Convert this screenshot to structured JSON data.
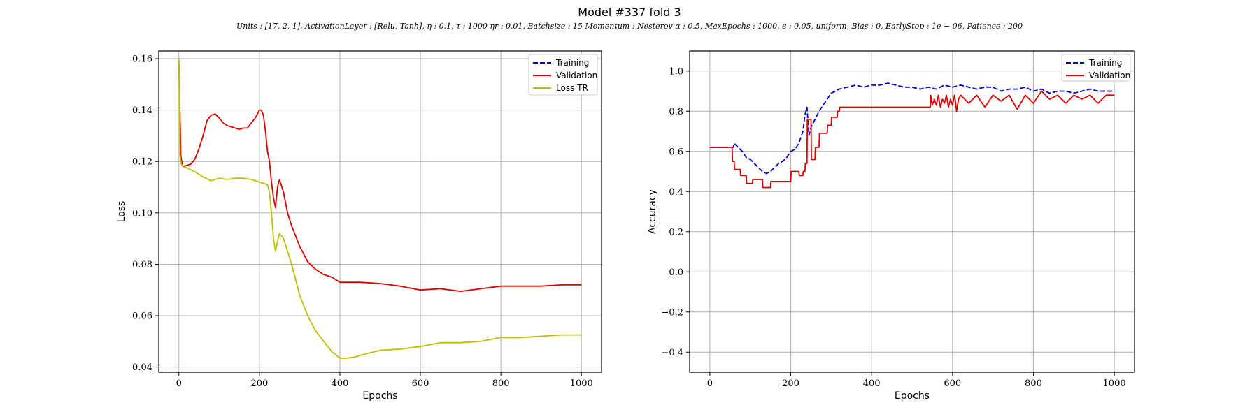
{
  "figure": {
    "title": "Model #337 fold 3",
    "subtitle": "Units : [17, 2, 1], ActivationLayer : [Relu, Tanh], η : 0.1, τ : 1000 ηr : 0.01, Batchsize : 15 Momentum : Nesterov α : 0.5, MaxEpochs : 1000, ϵ : 0.05, uniform, Bias : 0, EarlyStop : 1e − 06, Patience : 200"
  },
  "colors": {
    "training": "#0000cc",
    "validation": "#dd0000",
    "loss_tr": "#bfbf00",
    "grid": "#b0b0b0"
  },
  "chart_data": [
    {
      "type": "line",
      "xlabel": "Epochs",
      "ylabel": "Loss",
      "xlim": [
        -50,
        1050
      ],
      "ylim": [
        0.038,
        0.163
      ],
      "xticks": [
        0,
        200,
        400,
        600,
        800,
        1000
      ],
      "yticks": [
        0.04,
        0.06,
        0.08,
        0.1,
        0.12,
        0.14,
        0.16
      ],
      "yticklabels": [
        "0.04",
        "0.06",
        "0.08",
        "0.10",
        "0.12",
        "0.14",
        "0.16"
      ],
      "grid": true,
      "legend_position": "top-right",
      "legend": [
        "Training",
        "Validation",
        "Loss TR"
      ],
      "series": [
        {
          "name": "Validation",
          "style": "solid",
          "x": [
            0,
            5,
            10,
            20,
            30,
            40,
            50,
            60,
            70,
            80,
            90,
            100,
            110,
            120,
            130,
            140,
            150,
            160,
            170,
            180,
            190,
            200,
            205,
            210,
            215,
            220,
            225,
            230,
            235,
            240,
            245,
            250,
            260,
            270,
            280,
            300,
            320,
            340,
            360,
            380,
            400,
            450,
            500,
            550,
            600,
            650,
            700,
            750,
            800,
            850,
            900,
            950,
            1000
          ],
          "y": [
            0.158,
            0.122,
            0.118,
            0.1185,
            0.119,
            0.121,
            0.125,
            0.13,
            0.136,
            0.138,
            0.1385,
            0.137,
            0.135,
            0.134,
            0.1335,
            0.133,
            0.1325,
            0.133,
            0.133,
            0.135,
            0.137,
            0.14,
            0.14,
            0.138,
            0.132,
            0.124,
            0.12,
            0.112,
            0.106,
            0.102,
            0.11,
            0.113,
            0.108,
            0.1,
            0.095,
            0.087,
            0.081,
            0.078,
            0.076,
            0.075,
            0.073,
            0.073,
            0.0725,
            0.0715,
            0.07,
            0.0705,
            0.0695,
            0.0705,
            0.0715,
            0.0715,
            0.0715,
            0.072,
            0.072
          ]
        },
        {
          "name": "Loss TR",
          "style": "solid",
          "x": [
            0,
            3,
            6,
            10,
            20,
            40,
            60,
            80,
            100,
            120,
            140,
            160,
            180,
            200,
            210,
            220,
            225,
            230,
            235,
            240,
            245,
            250,
            255,
            260,
            270,
            280,
            290,
            300,
            320,
            340,
            360,
            380,
            400,
            420,
            440,
            460,
            500,
            550,
            600,
            650,
            700,
            750,
            800,
            850,
            900,
            950,
            1000
          ],
          "y": [
            0.16,
            0.122,
            0.119,
            0.118,
            0.1175,
            0.116,
            0.114,
            0.1125,
            0.1135,
            0.113,
            0.1135,
            0.1135,
            0.113,
            0.112,
            0.1115,
            0.111,
            0.108,
            0.1,
            0.09,
            0.085,
            0.089,
            0.092,
            0.091,
            0.09,
            0.085,
            0.08,
            0.074,
            0.068,
            0.06,
            0.054,
            0.05,
            0.046,
            0.0435,
            0.0435,
            0.044,
            0.045,
            0.0465,
            0.047,
            0.048,
            0.0495,
            0.0495,
            0.05,
            0.0515,
            0.0515,
            0.052,
            0.0525,
            0.0525
          ]
        }
      ]
    },
    {
      "type": "line",
      "xlabel": "Epochs",
      "ylabel": "Accuracy",
      "xlim": [
        -50,
        1050
      ],
      "ylim": [
        -0.5,
        1.1
      ],
      "xticks": [
        0,
        200,
        400,
        600,
        800,
        1000
      ],
      "yticks": [
        -0.4,
        -0.2,
        0.0,
        0.2,
        0.4,
        0.6,
        0.8,
        1.0
      ],
      "yticklabels": [
        "−0.4",
        "−0.2",
        "0.0",
        "0.2",
        "0.4",
        "0.6",
        "0.8",
        "1.0"
      ],
      "grid": true,
      "legend_position": "top-right",
      "legend": [
        "Training",
        "Validation"
      ],
      "series": [
        {
          "name": "Training",
          "style": "dashed",
          "x": [
            0,
            20,
            40,
            58,
            60,
            70,
            80,
            90,
            100,
            110,
            120,
            130,
            140,
            150,
            160,
            170,
            180,
            190,
            200,
            210,
            220,
            230,
            235,
            240,
            245,
            250,
            260,
            270,
            280,
            290,
            300,
            320,
            340,
            360,
            380,
            400,
            420,
            440,
            460,
            480,
            500,
            520,
            540,
            560,
            580,
            600,
            620,
            640,
            660,
            680,
            700,
            720,
            740,
            760,
            780,
            800,
            820,
            840,
            860,
            880,
            900,
            920,
            940,
            960,
            980,
            1000
          ],
          "y": [
            0.62,
            0.62,
            0.62,
            0.62,
            0.64,
            0.62,
            0.6,
            0.57,
            0.56,
            0.54,
            0.52,
            0.5,
            0.49,
            0.5,
            0.52,
            0.54,
            0.55,
            0.57,
            0.6,
            0.61,
            0.64,
            0.7,
            0.78,
            0.82,
            0.68,
            0.72,
            0.76,
            0.8,
            0.83,
            0.86,
            0.89,
            0.91,
            0.92,
            0.93,
            0.92,
            0.93,
            0.93,
            0.94,
            0.93,
            0.92,
            0.92,
            0.91,
            0.92,
            0.91,
            0.93,
            0.92,
            0.93,
            0.92,
            0.91,
            0.92,
            0.92,
            0.9,
            0.91,
            0.91,
            0.92,
            0.9,
            0.91,
            0.89,
            0.9,
            0.9,
            0.89,
            0.9,
            0.91,
            0.9,
            0.9,
            0.9
          ]
        },
        {
          "name": "Validation",
          "style": "solid",
          "x": [
            0,
            55,
            56,
            60,
            61,
            75,
            76,
            90,
            91,
            105,
            106,
            130,
            131,
            150,
            151,
            200,
            201,
            220,
            221,
            230,
            231,
            235,
            236,
            240,
            241,
            250,
            251,
            260,
            261,
            270,
            271,
            290,
            291,
            300,
            301,
            315,
            316,
            320,
            321,
            545,
            546,
            550,
            555,
            560,
            565,
            570,
            575,
            580,
            585,
            590,
            595,
            600,
            605,
            610,
            615,
            620,
            640,
            660,
            680,
            700,
            720,
            740,
            760,
            780,
            800,
            820,
            840,
            860,
            880,
            900,
            920,
            940,
            960,
            980,
            1000
          ],
          "y": [
            0.62,
            0.62,
            0.55,
            0.55,
            0.51,
            0.51,
            0.48,
            0.48,
            0.44,
            0.44,
            0.46,
            0.46,
            0.42,
            0.42,
            0.45,
            0.45,
            0.5,
            0.5,
            0.48,
            0.48,
            0.5,
            0.5,
            0.54,
            0.54,
            0.76,
            0.76,
            0.56,
            0.56,
            0.62,
            0.62,
            0.69,
            0.69,
            0.73,
            0.73,
            0.77,
            0.77,
            0.8,
            0.8,
            0.82,
            0.82,
            0.88,
            0.83,
            0.86,
            0.83,
            0.88,
            0.82,
            0.86,
            0.84,
            0.88,
            0.82,
            0.86,
            0.83,
            0.88,
            0.8,
            0.86,
            0.88,
            0.84,
            0.88,
            0.82,
            0.88,
            0.85,
            0.88,
            0.81,
            0.88,
            0.84,
            0.9,
            0.86,
            0.88,
            0.84,
            0.88,
            0.86,
            0.88,
            0.84,
            0.88,
            0.88
          ]
        }
      ]
    }
  ]
}
